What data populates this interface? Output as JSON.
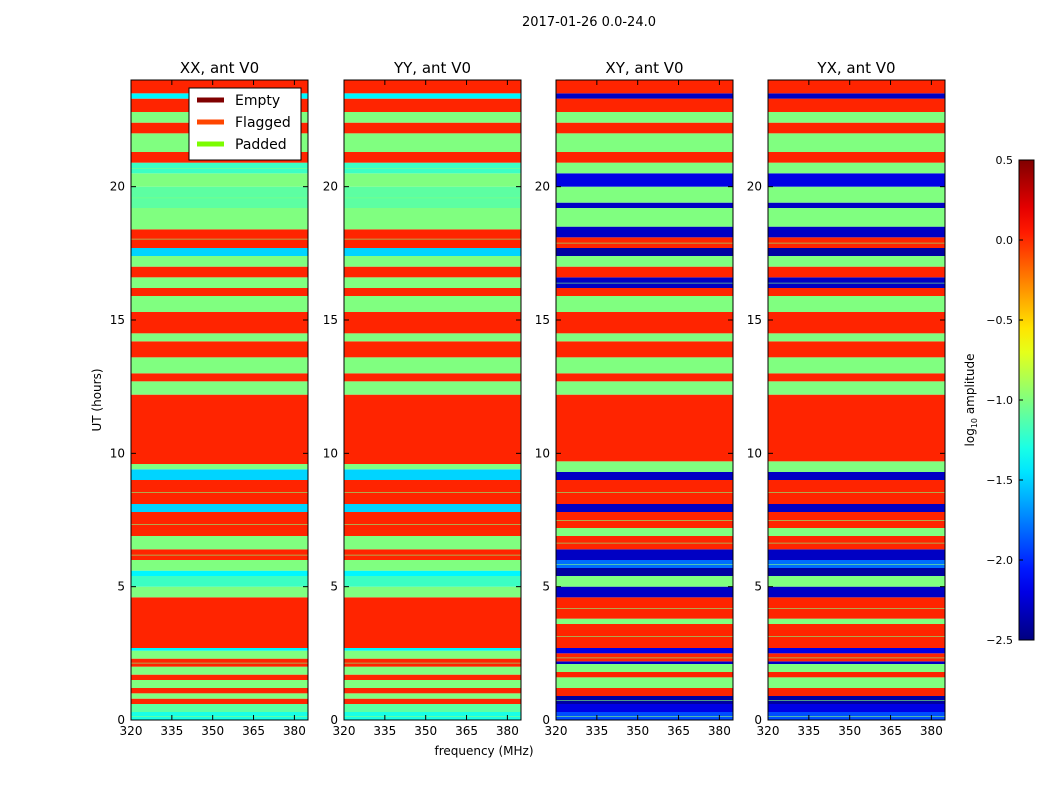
{
  "chart_data": {
    "type": "heatmap",
    "suptitle": "2017-01-26 0.0-24.0",
    "xlabel": "frequency (MHz)",
    "ylabel": "UT (hours)",
    "xlim": [
      320,
      385
    ],
    "ylim": [
      0,
      24
    ],
    "xticks": [
      "320",
      "335",
      "350",
      "365",
      "380"
    ],
    "xtick_values": [
      320,
      335,
      350,
      365,
      380
    ],
    "yticks": [
      "0",
      "5",
      "10",
      "15",
      "20"
    ],
    "ytick_values": [
      0,
      5,
      10,
      15,
      20
    ],
    "colorbar": {
      "label_prefix": "log",
      "label_sub": "10",
      "label_suffix": " amplitude",
      "range": [
        -2.5,
        0.5
      ],
      "ticks": [
        "0.5",
        "0.0",
        "−0.5",
        "−1.0",
        "−1.5",
        "−2.0",
        "−2.5"
      ],
      "tick_values": [
        0.5,
        0.0,
        -0.5,
        -1.0,
        -1.5,
        -2.0,
        -2.5
      ],
      "colormap": "jet"
    },
    "legend": {
      "placement": "upper-right of first panel",
      "entries": [
        {
          "label": "Empty",
          "color": "#800000"
        },
        {
          "label": "Flagged",
          "color": "#ff4500"
        },
        {
          "label": "Padded",
          "color": "#7cfc00"
        }
      ]
    },
    "panels": [
      {
        "title": "XX, ant V0",
        "bands_ref": "parallel"
      },
      {
        "title": "YY, ant V0",
        "bands_ref": "parallel"
      },
      {
        "title": "XY, ant V0",
        "bands_ref": "cross"
      },
      {
        "title": "YX, ant V0",
        "bands_ref": "cross"
      }
    ],
    "bands_note": "time bands [start_hour, end_hour, log10 amplitude]; 0.0 ≈ flagged color",
    "bands": {
      "parallel": [
        [
          0,
          0.3,
          -1.3
        ],
        [
          0.3,
          0.6,
          -1.1
        ],
        [
          0.6,
          0.8,
          0
        ],
        [
          0.8,
          1.0,
          -1
        ],
        [
          1.0,
          1.2,
          0
        ],
        [
          1.2,
          1.5,
          -1
        ],
        [
          1.5,
          1.7,
          0
        ],
        [
          1.7,
          2.0,
          -1
        ],
        [
          2.0,
          2.3,
          0
        ],
        [
          2.3,
          2.6,
          -1
        ],
        [
          2.6,
          2.7,
          -1.4
        ],
        [
          2.7,
          4.6,
          0
        ],
        [
          4.6,
          5.0,
          -1
        ],
        [
          5.0,
          5.4,
          -1.2
        ],
        [
          5.4,
          5.6,
          -1.4
        ],
        [
          5.6,
          6.0,
          -1
        ],
        [
          6.0,
          6.4,
          0
        ],
        [
          6.4,
          6.9,
          -1
        ],
        [
          6.9,
          7.8,
          0
        ],
        [
          7.8,
          8.1,
          -1.5
        ],
        [
          8.1,
          9.0,
          0
        ],
        [
          9.0,
          9.4,
          -1.5
        ],
        [
          9.4,
          9.6,
          -1
        ],
        [
          9.6,
          12.2,
          0
        ],
        [
          12.2,
          12.7,
          -1
        ],
        [
          12.7,
          13.0,
          0
        ],
        [
          13.0,
          13.6,
          -1
        ],
        [
          13.6,
          14.2,
          0
        ],
        [
          14.2,
          14.5,
          -1
        ],
        [
          14.5,
          15.3,
          0
        ],
        [
          15.3,
          15.9,
          -1
        ],
        [
          15.9,
          16.2,
          0
        ],
        [
          16.2,
          16.6,
          -1
        ],
        [
          16.6,
          17.0,
          0
        ],
        [
          17.0,
          17.4,
          -1
        ],
        [
          17.4,
          17.7,
          -1.5
        ],
        [
          17.7,
          18.4,
          0
        ],
        [
          18.4,
          19.2,
          -1
        ],
        [
          19.2,
          20.0,
          -1.1
        ],
        [
          20.0,
          20.5,
          -1
        ],
        [
          20.5,
          20.9,
          -1.2
        ],
        [
          20.9,
          21.3,
          0
        ],
        [
          21.3,
          22.0,
          -1
        ],
        [
          22.0,
          22.4,
          0
        ],
        [
          22.4,
          22.8,
          -1
        ],
        [
          22.8,
          23.3,
          0
        ],
        [
          23.3,
          23.5,
          -1.4
        ],
        [
          23.5,
          24,
          0
        ]
      ],
      "cross": [
        [
          0,
          0.3,
          -1.9
        ],
        [
          0.3,
          0.6,
          -2.2
        ],
        [
          0.6,
          0.9,
          -2.4
        ],
        [
          0.9,
          1.2,
          0
        ],
        [
          1.2,
          1.6,
          -1
        ],
        [
          1.6,
          1.8,
          0
        ],
        [
          1.8,
          2.1,
          -1
        ],
        [
          2.1,
          2.2,
          -2.3
        ],
        [
          2.2,
          2.5,
          0
        ],
        [
          2.5,
          2.7,
          -2.2
        ],
        [
          2.7,
          3.6,
          0
        ],
        [
          3.6,
          3.8,
          -1
        ],
        [
          3.8,
          4.6,
          0
        ],
        [
          4.6,
          5.0,
          -2.3
        ],
        [
          5.0,
          5.4,
          -1
        ],
        [
          5.4,
          5.7,
          -2.4
        ],
        [
          5.7,
          6.0,
          -1.8
        ],
        [
          6.0,
          6.4,
          -2.3
        ],
        [
          6.4,
          6.9,
          0
        ],
        [
          6.9,
          7.2,
          -1
        ],
        [
          7.2,
          7.8,
          0
        ],
        [
          7.8,
          8.1,
          -2.3
        ],
        [
          8.1,
          9.0,
          0
        ],
        [
          9.0,
          9.3,
          -2.3
        ],
        [
          9.3,
          9.7,
          -1
        ],
        [
          9.7,
          12.2,
          0
        ],
        [
          12.2,
          12.7,
          -1
        ],
        [
          12.7,
          13.0,
          0
        ],
        [
          13.0,
          13.6,
          -1
        ],
        [
          13.6,
          14.2,
          0
        ],
        [
          14.2,
          14.5,
          -1
        ],
        [
          14.5,
          15.3,
          0
        ],
        [
          15.3,
          15.9,
          -1
        ],
        [
          15.9,
          16.2,
          0
        ],
        [
          16.2,
          16.6,
          -2.3
        ],
        [
          16.6,
          17.0,
          0
        ],
        [
          17.0,
          17.4,
          -1
        ],
        [
          17.4,
          17.7,
          -2.4
        ],
        [
          17.7,
          18.1,
          0
        ],
        [
          18.1,
          18.5,
          -2.3
        ],
        [
          18.5,
          19.2,
          -1
        ],
        [
          19.2,
          19.4,
          -2.3
        ],
        [
          19.4,
          20.0,
          -1
        ],
        [
          20.0,
          20.5,
          -2.2
        ],
        [
          20.5,
          20.9,
          -1
        ],
        [
          20.9,
          21.3,
          0
        ],
        [
          21.3,
          22.0,
          -1
        ],
        [
          22.0,
          22.4,
          0
        ],
        [
          22.4,
          22.8,
          -1
        ],
        [
          22.8,
          23.3,
          0
        ],
        [
          23.3,
          23.5,
          -2.3
        ],
        [
          23.5,
          24,
          0
        ]
      ]
    }
  }
}
